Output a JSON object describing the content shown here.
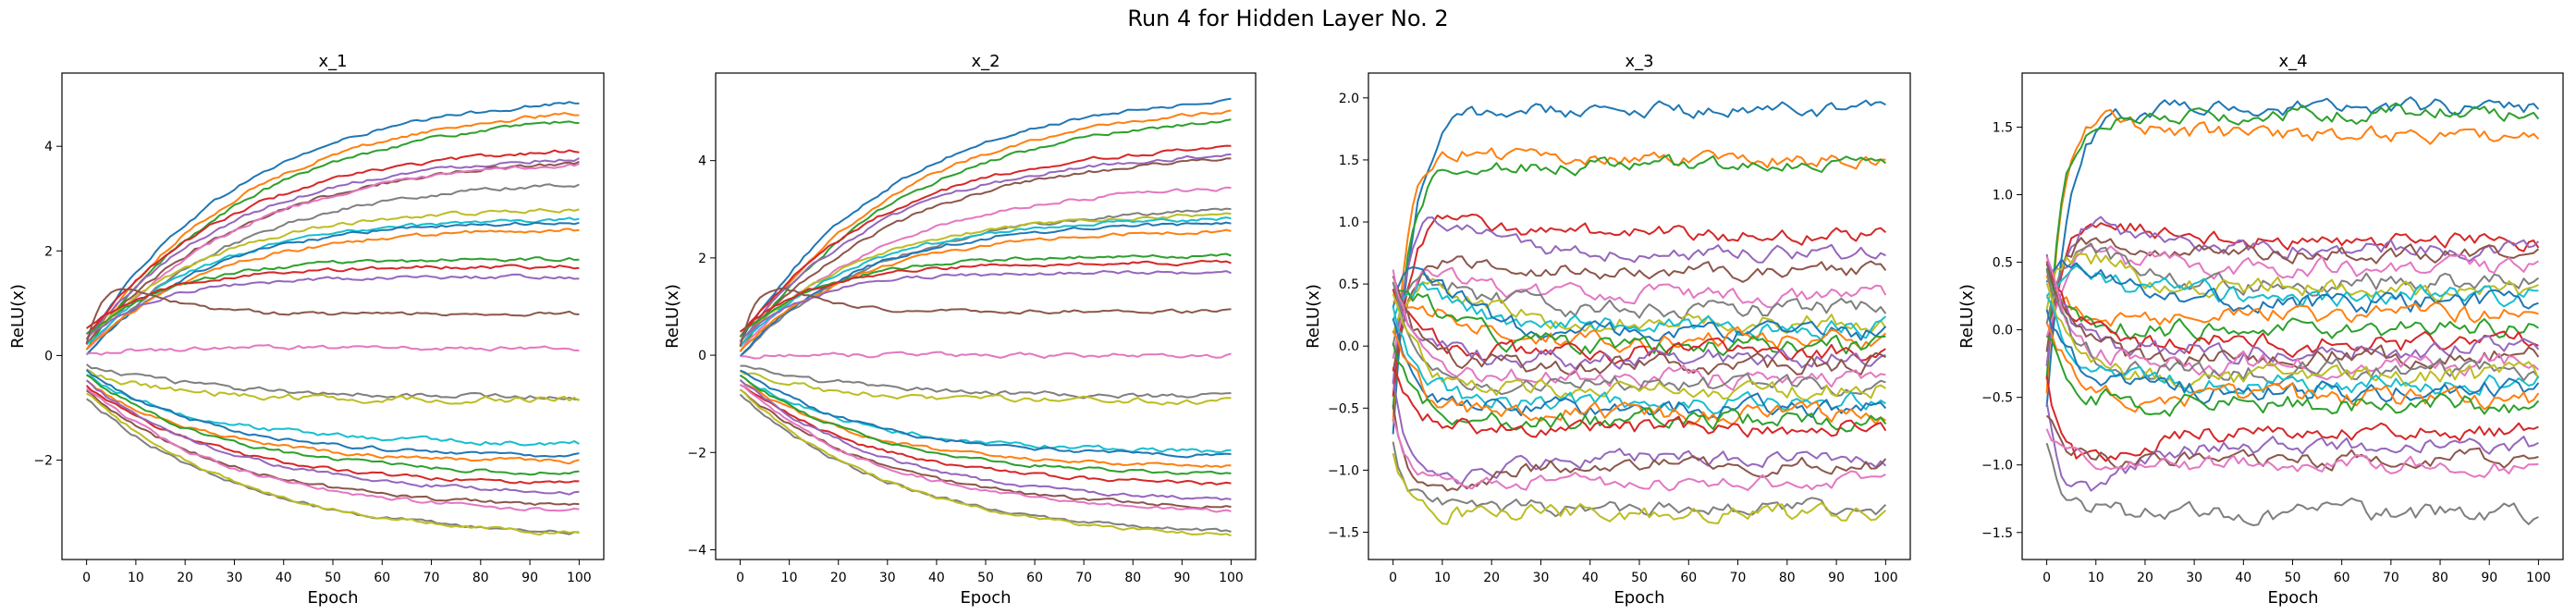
{
  "figure_title": "Run 4 for Hidden Layer No. 2",
  "palette": [
    "#1f77b4",
    "#ff7f0e",
    "#2ca02c",
    "#d62728",
    "#9467bd",
    "#8c564b",
    "#e377c2",
    "#7f7f7f",
    "#bcbd22",
    "#17becf"
  ],
  "chart_data": [
    {
      "type": "line",
      "title": "x_1",
      "xlabel": "Epoch",
      "ylabel": "ReLU(x)",
      "xlim": [
        -5,
        105
      ],
      "ylim": [
        -3.9,
        5.4
      ],
      "xticks": [
        0,
        10,
        20,
        30,
        40,
        50,
        60,
        70,
        80,
        90,
        100
      ],
      "yticks": [
        -2,
        0,
        2,
        4
      ],
      "ytick_labels": [
        "−2",
        "0",
        "2",
        "4"
      ],
      "grid": false,
      "epochs": 100,
      "series": [
        {
          "start": 0.3,
          "end": 5.05,
          "tau": 32,
          "noise": 0.03
        },
        {
          "start": 0.2,
          "end": 4.85,
          "tau": 33,
          "noise": 0.03
        },
        {
          "start": 0.1,
          "end": 4.7,
          "tau": 33,
          "noise": 0.03
        },
        {
          "start": 0.4,
          "end": 4.05,
          "tau": 30,
          "noise": 0.03
        },
        {
          "start": 0.3,
          "end": 3.9,
          "tau": 30,
          "noise": 0.03
        },
        {
          "start": 0.2,
          "end": 3.85,
          "tau": 32,
          "noise": 0.03
        },
        {
          "start": 0.1,
          "end": 3.8,
          "tau": 31,
          "noise": 0.03
        },
        {
          "start": 0.0,
          "end": 3.4,
          "tau": 30,
          "noise": 0.03
        },
        {
          "start": 0.3,
          "end": 2.85,
          "tau": 26,
          "noise": 0.03
        },
        {
          "start": 0.2,
          "end": 2.65,
          "tau": 25,
          "noise": 0.03
        },
        {
          "start": 0.0,
          "end": 2.6,
          "tau": 24,
          "noise": 0.03
        },
        {
          "start": 0.1,
          "end": 2.45,
          "tau": 25,
          "noise": 0.03
        },
        {
          "start": 0.4,
          "end": 1.85,
          "tau": 18,
          "noise": 0.03
        },
        {
          "start": 0.5,
          "end": 1.7,
          "tau": 16,
          "noise": 0.03
        },
        {
          "start": 0.3,
          "end": 1.5,
          "tau": 14,
          "noise": 0.03
        },
        {
          "start": 0.2,
          "end": 0.8,
          "tau": 10,
          "noise": 0.03,
          "bump": 0.8
        },
        {
          "start": 0.0,
          "end": 0.15,
          "tau": 8,
          "noise": 0.04
        },
        {
          "start": -0.2,
          "end": -0.8,
          "tau": 25,
          "noise": 0.04
        },
        {
          "start": -0.3,
          "end": -0.85,
          "tau": 18,
          "noise": 0.05
        },
        {
          "start": -0.4,
          "end": -1.7,
          "tau": 25,
          "noise": 0.04
        },
        {
          "start": -0.3,
          "end": -1.95,
          "tau": 26,
          "noise": 0.03
        },
        {
          "start": -0.5,
          "end": -2.05,
          "tau": 25,
          "noise": 0.03
        },
        {
          "start": -0.4,
          "end": -2.3,
          "tau": 28,
          "noise": 0.03
        },
        {
          "start": -0.6,
          "end": -2.5,
          "tau": 28,
          "noise": 0.03
        },
        {
          "start": -0.5,
          "end": -2.7,
          "tau": 30,
          "noise": 0.03
        },
        {
          "start": -0.7,
          "end": -2.95,
          "tau": 30,
          "noise": 0.03
        },
        {
          "start": -0.6,
          "end": -3.05,
          "tau": 30,
          "noise": 0.03
        },
        {
          "start": -0.8,
          "end": -3.5,
          "tau": 32,
          "noise": 0.03
        },
        {
          "start": -0.7,
          "end": -3.55,
          "tau": 33,
          "noise": 0.03
        }
      ]
    },
    {
      "type": "line",
      "title": "x_2",
      "xlabel": "Epoch",
      "ylabel": "ReLU(x)",
      "xlim": [
        -5,
        105
      ],
      "ylim": [
        -4.2,
        5.8
      ],
      "xticks": [
        0,
        10,
        20,
        30,
        40,
        50,
        60,
        70,
        80,
        90,
        100
      ],
      "yticks": [
        -4,
        -2,
        0,
        2,
        4
      ],
      "ytick_labels": [
        "−4",
        "−2",
        "0",
        "2",
        "4"
      ],
      "grid": false,
      "epochs": 100,
      "series": [
        {
          "start": 0.3,
          "end": 5.45,
          "tau": 32,
          "noise": 0.03
        },
        {
          "start": 0.2,
          "end": 5.25,
          "tau": 33,
          "noise": 0.03
        },
        {
          "start": 0.1,
          "end": 5.05,
          "tau": 33,
          "noise": 0.03
        },
        {
          "start": 0.4,
          "end": 4.4,
          "tau": 30,
          "noise": 0.03
        },
        {
          "start": 0.3,
          "end": 4.25,
          "tau": 30,
          "noise": 0.03
        },
        {
          "start": 0.2,
          "end": 4.2,
          "tau": 32,
          "noise": 0.03
        },
        {
          "start": 0.1,
          "end": 3.55,
          "tau": 30,
          "noise": 0.03
        },
        {
          "start": 0.0,
          "end": 3.1,
          "tau": 30,
          "noise": 0.03
        },
        {
          "start": 0.3,
          "end": 2.95,
          "tau": 26,
          "noise": 0.03
        },
        {
          "start": 0.2,
          "end": 2.85,
          "tau": 25,
          "noise": 0.03
        },
        {
          "start": 0.0,
          "end": 2.75,
          "tau": 24,
          "noise": 0.03
        },
        {
          "start": 0.1,
          "end": 2.6,
          "tau": 25,
          "noise": 0.03
        },
        {
          "start": 0.4,
          "end": 2.05,
          "tau": 18,
          "noise": 0.03
        },
        {
          "start": 0.5,
          "end": 1.9,
          "tau": 16,
          "noise": 0.03
        },
        {
          "start": 0.3,
          "end": 1.7,
          "tau": 14,
          "noise": 0.03
        },
        {
          "start": 0.2,
          "end": 0.9,
          "tau": 10,
          "noise": 0.03,
          "bump": 0.8
        },
        {
          "start": 0.0,
          "end": 0.0,
          "tau": 8,
          "noise": 0.04
        },
        {
          "start": -0.2,
          "end": -0.85,
          "tau": 25,
          "noise": 0.04
        },
        {
          "start": -0.3,
          "end": -0.95,
          "tau": 18,
          "noise": 0.05
        },
        {
          "start": -0.4,
          "end": -2.0,
          "tau": 25,
          "noise": 0.04
        },
        {
          "start": -0.3,
          "end": -2.1,
          "tau": 26,
          "noise": 0.03
        },
        {
          "start": -0.5,
          "end": -2.3,
          "tau": 25,
          "noise": 0.03
        },
        {
          "start": -0.4,
          "end": -2.5,
          "tau": 28,
          "noise": 0.03
        },
        {
          "start": -0.6,
          "end": -2.7,
          "tau": 28,
          "noise": 0.03
        },
        {
          "start": -0.5,
          "end": -3.05,
          "tau": 30,
          "noise": 0.03
        },
        {
          "start": -0.7,
          "end": -3.2,
          "tau": 30,
          "noise": 0.03
        },
        {
          "start": -0.6,
          "end": -3.3,
          "tau": 30,
          "noise": 0.03
        },
        {
          "start": -0.8,
          "end": -3.75,
          "tau": 32,
          "noise": 0.03
        },
        {
          "start": -0.7,
          "end": -3.85,
          "tau": 33,
          "noise": 0.03
        }
      ]
    },
    {
      "type": "line",
      "title": "x_3",
      "xlabel": "Epoch",
      "ylabel": "ReLU(x)",
      "xlim": [
        -5,
        105
      ],
      "ylim": [
        -1.72,
        2.2
      ],
      "xticks": [
        0,
        10,
        20,
        30,
        40,
        50,
        60,
        70,
        80,
        90,
        100
      ],
      "yticks": [
        -1.5,
        -1.0,
        -0.5,
        0.0,
        0.5,
        1.0,
        1.5,
        2.0
      ],
      "ytick_labels": [
        "−1.5",
        "−1.0",
        "−0.5",
        "0.0",
        "0.5",
        "1.0",
        "1.5",
        "2.0"
      ],
      "grid": false,
      "epochs": 100,
      "series": [
        {
          "start": -0.7,
          "end": 1.9,
          "tau": 4,
          "noise": 0.05
        },
        {
          "start": -0.6,
          "end": 1.5,
          "tau": 3,
          "noise": 0.05,
          "bump": 0.15
        },
        {
          "start": -0.5,
          "end": 1.45,
          "tau": 3,
          "noise": 0.05
        },
        {
          "start": -0.4,
          "end": 0.9,
          "tau": 4,
          "noise": 0.05,
          "bump": 0.25
        },
        {
          "start": -0.3,
          "end": 0.75,
          "tau": 4,
          "noise": 0.05,
          "bump": 0.4
        },
        {
          "start": -0.2,
          "end": 0.6,
          "tau": 4,
          "noise": 0.05,
          "bump": 0.15
        },
        {
          "start": -0.1,
          "end": 0.4,
          "tau": 5,
          "noise": 0.06,
          "bump": 0.3
        },
        {
          "start": 0.0,
          "end": 0.3,
          "tau": 5,
          "noise": 0.06,
          "bump": 0.3
        },
        {
          "start": 0.1,
          "end": 0.2,
          "tau": 5,
          "noise": 0.06,
          "bump": 0.35
        },
        {
          "start": 0.2,
          "end": 0.15,
          "tau": 5,
          "noise": 0.06,
          "bump": 0.3
        },
        {
          "start": 0.3,
          "end": 0.1,
          "tau": 5,
          "noise": 0.06,
          "bump": 0.4
        },
        {
          "start": 0.35,
          "end": 0.05,
          "tau": 5,
          "noise": 0.06,
          "bump": 0.2
        },
        {
          "start": 0.4,
          "end": 0.0,
          "tau": 5,
          "noise": 0.06,
          "bump": 0.25
        },
        {
          "start": 0.45,
          "end": -0.05,
          "tau": 5,
          "noise": 0.06
        },
        {
          "start": 0.5,
          "end": -0.1,
          "tau": 5,
          "noise": 0.06
        },
        {
          "start": 0.55,
          "end": -0.15,
          "tau": 5,
          "noise": 0.06
        },
        {
          "start": 0.6,
          "end": -0.25,
          "tau": 5,
          "noise": 0.06
        },
        {
          "start": 0.5,
          "end": -0.3,
          "tau": 5,
          "noise": 0.06
        },
        {
          "start": 0.4,
          "end": -0.35,
          "tau": 5,
          "noise": 0.06
        },
        {
          "start": 0.3,
          "end": -0.45,
          "tau": 5,
          "noise": 0.06
        },
        {
          "start": 0.2,
          "end": -0.5,
          "tau": 5,
          "noise": 0.06
        },
        {
          "start": 0.1,
          "end": -0.55,
          "tau": 5,
          "noise": 0.06
        },
        {
          "start": 0.0,
          "end": -0.6,
          "tau": 5,
          "noise": 0.06
        },
        {
          "start": -0.2,
          "end": -0.65,
          "tau": 5,
          "noise": 0.06
        },
        {
          "start": -0.3,
          "end": -0.9,
          "tau": 4,
          "noise": 0.05,
          "bump": -0.3
        },
        {
          "start": -0.5,
          "end": -0.95,
          "tau": 4,
          "noise": 0.05,
          "bump": -0.3
        },
        {
          "start": -0.6,
          "end": -1.1,
          "tau": 3,
          "noise": 0.05
        },
        {
          "start": -0.8,
          "end": -1.3,
          "tau": 3,
          "noise": 0.05
        },
        {
          "start": -0.9,
          "end": -1.35,
          "tau": 3,
          "noise": 0.06
        }
      ]
    },
    {
      "type": "line",
      "title": "x_4",
      "xlabel": "Epoch",
      "ylabel": "ReLU(x)",
      "xlim": [
        -5,
        105
      ],
      "ylim": [
        -1.7,
        1.9
      ],
      "xticks": [
        0,
        10,
        20,
        30,
        40,
        50,
        60,
        70,
        80,
        90,
        100
      ],
      "yticks": [
        -1.5,
        -1.0,
        -0.5,
        0.0,
        0.5,
        1.0,
        1.5
      ],
      "ytick_labels": [
        "−1.5",
        "−1.0",
        "−0.5",
        "0.0",
        "0.5",
        "1.0",
        "1.5"
      ],
      "grid": false,
      "epochs": 100,
      "series": [
        {
          "start": -0.6,
          "end": 1.65,
          "tau": 4,
          "noise": 0.05
        },
        {
          "start": -0.5,
          "end": 1.45,
          "tau": 3,
          "noise": 0.05,
          "bump": 0.2
        },
        {
          "start": -0.4,
          "end": 1.6,
          "tau": 3,
          "noise": 0.05
        },
        {
          "start": -0.3,
          "end": 0.65,
          "tau": 4,
          "noise": 0.05,
          "bump": 0.3
        },
        {
          "start": -0.3,
          "end": 0.6,
          "tau": 4,
          "noise": 0.05,
          "bump": 0.3
        },
        {
          "start": -0.2,
          "end": 0.55,
          "tau": 4,
          "noise": 0.05,
          "bump": 0.2
        },
        {
          "start": -0.1,
          "end": 0.45,
          "tau": 5,
          "noise": 0.06,
          "bump": 0.2
        },
        {
          "start": 0.0,
          "end": 0.35,
          "tau": 5,
          "noise": 0.06,
          "bump": 0.3
        },
        {
          "start": 0.1,
          "end": 0.3,
          "tau": 5,
          "noise": 0.06,
          "bump": 0.3
        },
        {
          "start": 0.2,
          "end": 0.25,
          "tau": 5,
          "noise": 0.06,
          "bump": 0.2
        },
        {
          "start": 0.3,
          "end": 0.2,
          "tau": 5,
          "noise": 0.06,
          "bump": 0.25
        },
        {
          "start": 0.35,
          "end": 0.1,
          "tau": 5,
          "noise": 0.06
        },
        {
          "start": 0.4,
          "end": 0.0,
          "tau": 5,
          "noise": 0.06
        },
        {
          "start": 0.45,
          "end": -0.1,
          "tau": 5,
          "noise": 0.06
        },
        {
          "start": 0.5,
          "end": -0.15,
          "tau": 5,
          "noise": 0.06
        },
        {
          "start": 0.55,
          "end": -0.2,
          "tau": 5,
          "noise": 0.06
        },
        {
          "start": 0.6,
          "end": -0.25,
          "tau": 5,
          "noise": 0.06
        },
        {
          "start": 0.5,
          "end": -0.3,
          "tau": 5,
          "noise": 0.06
        },
        {
          "start": 0.4,
          "end": -0.35,
          "tau": 5,
          "noise": 0.06
        },
        {
          "start": 0.3,
          "end": -0.4,
          "tau": 5,
          "noise": 0.06
        },
        {
          "start": 0.2,
          "end": -0.45,
          "tau": 5,
          "noise": 0.06
        },
        {
          "start": 0.1,
          "end": -0.5,
          "tau": 5,
          "noise": 0.06
        },
        {
          "start": 0.0,
          "end": -0.55,
          "tau": 5,
          "noise": 0.06
        },
        {
          "start": -0.3,
          "end": -0.75,
          "tau": 4,
          "noise": 0.05,
          "bump": -0.3
        },
        {
          "start": -0.5,
          "end": -0.85,
          "tau": 4,
          "noise": 0.05,
          "bump": -0.4
        },
        {
          "start": -0.6,
          "end": -0.95,
          "tau": 3,
          "noise": 0.05
        },
        {
          "start": -0.7,
          "end": -1.0,
          "tau": 3,
          "noise": 0.05
        },
        {
          "start": -0.8,
          "end": -1.35,
          "tau": 3,
          "noise": 0.06
        }
      ]
    }
  ]
}
